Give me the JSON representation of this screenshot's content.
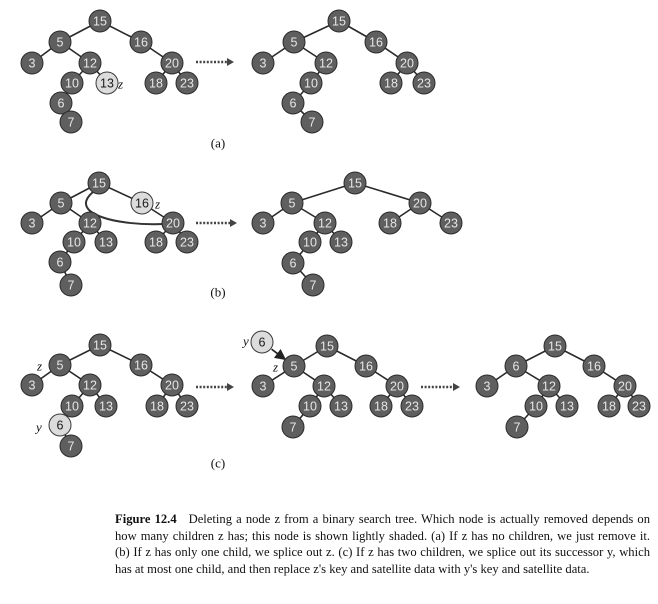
{
  "caption": {
    "title": "Figure 12.4",
    "text": "Deleting a node z from a binary search tree. Which node is actually removed depends on how many children z has; this node is shown lightly shaded. (a) If z has no children, we just remove it. (b) If z has only one child, we splice out z. (c) If z has two children, we splice out its successor y, which has at most one child, and then replace z's key and satellite data with y's key and satellite data."
  },
  "colors": {
    "dark_node": "#5f5f5f",
    "light_node": "#dcdcdc",
    "edge": "#2a2a2a"
  },
  "panels": [
    {
      "label": "(a)",
      "trees": [
        {
          "nodes": [
            {
              "id": "n15",
              "key": "15",
              "shade": "dark"
            },
            {
              "id": "n5",
              "key": "5",
              "shade": "dark"
            },
            {
              "id": "n16",
              "key": "16",
              "shade": "dark"
            },
            {
              "id": "n3",
              "key": "3",
              "shade": "dark"
            },
            {
              "id": "n12",
              "key": "12",
              "shade": "dark"
            },
            {
              "id": "n20",
              "key": "20",
              "shade": "dark"
            },
            {
              "id": "n10",
              "key": "10",
              "shade": "dark"
            },
            {
              "id": "n13",
              "key": "13",
              "shade": "light",
              "marker": "z"
            },
            {
              "id": "n18",
              "key": "18",
              "shade": "dark"
            },
            {
              "id": "n23",
              "key": "23",
              "shade": "dark"
            },
            {
              "id": "n6",
              "key": "6",
              "shade": "dark"
            },
            {
              "id": "n7",
              "key": "7",
              "shade": "dark"
            }
          ],
          "edges": [
            [
              "n15",
              "n5"
            ],
            [
              "n15",
              "n16"
            ],
            [
              "n5",
              "n3"
            ],
            [
              "n5",
              "n12"
            ],
            [
              "n16",
              "n20"
            ],
            [
              "n12",
              "n10"
            ],
            [
              "n12",
              "n13"
            ],
            [
              "n20",
              "n18"
            ],
            [
              "n20",
              "n23"
            ],
            [
              "n10",
              "n6"
            ],
            [
              "n6",
              "n7"
            ]
          ]
        },
        {
          "nodes": [
            {
              "id": "n15",
              "key": "15",
              "shade": "dark"
            },
            {
              "id": "n5",
              "key": "5",
              "shade": "dark"
            },
            {
              "id": "n16",
              "key": "16",
              "shade": "dark"
            },
            {
              "id": "n3",
              "key": "3",
              "shade": "dark"
            },
            {
              "id": "n12",
              "key": "12",
              "shade": "dark"
            },
            {
              "id": "n20",
              "key": "20",
              "shade": "dark"
            },
            {
              "id": "n10",
              "key": "10",
              "shade": "dark"
            },
            {
              "id": "n18",
              "key": "18",
              "shade": "dark"
            },
            {
              "id": "n23",
              "key": "23",
              "shade": "dark"
            },
            {
              "id": "n6",
              "key": "6",
              "shade": "dark"
            },
            {
              "id": "n7",
              "key": "7",
              "shade": "dark"
            }
          ],
          "edges": [
            [
              "n15",
              "n5"
            ],
            [
              "n15",
              "n16"
            ],
            [
              "n5",
              "n3"
            ],
            [
              "n5",
              "n12"
            ],
            [
              "n16",
              "n20"
            ],
            [
              "n12",
              "n10"
            ],
            [
              "n20",
              "n18"
            ],
            [
              "n20",
              "n23"
            ],
            [
              "n10",
              "n6"
            ],
            [
              "n6",
              "n7"
            ]
          ]
        }
      ]
    },
    {
      "label": "(b)",
      "trees": [
        {
          "nodes": [
            {
              "id": "n15",
              "key": "15",
              "shade": "dark"
            },
            {
              "id": "n5",
              "key": "5",
              "shade": "dark"
            },
            {
              "id": "n16",
              "key": "16",
              "shade": "light",
              "marker": "z"
            },
            {
              "id": "n3",
              "key": "3",
              "shade": "dark"
            },
            {
              "id": "n12",
              "key": "12",
              "shade": "dark"
            },
            {
              "id": "n20",
              "key": "20",
              "shade": "dark"
            },
            {
              "id": "n10",
              "key": "10",
              "shade": "dark"
            },
            {
              "id": "n13",
              "key": "13",
              "shade": "dark"
            },
            {
              "id": "n18",
              "key": "18",
              "shade": "dark"
            },
            {
              "id": "n23",
              "key": "23",
              "shade": "dark"
            },
            {
              "id": "n6",
              "key": "6",
              "shade": "dark"
            },
            {
              "id": "n7",
              "key": "7",
              "shade": "dark"
            }
          ],
          "edges": [
            [
              "n15",
              "n5"
            ],
            [
              "n15",
              "n16"
            ],
            [
              "n5",
              "n3"
            ],
            [
              "n5",
              "n12"
            ],
            [
              "n16",
              "n20"
            ],
            [
              "n12",
              "n10"
            ],
            [
              "n12",
              "n13"
            ],
            [
              "n20",
              "n18"
            ],
            [
              "n20",
              "n23"
            ],
            [
              "n10",
              "n6"
            ],
            [
              "n6",
              "n7"
            ]
          ],
          "splice_curve": [
            "n15",
            "n20"
          ]
        },
        {
          "nodes": [
            {
              "id": "n15",
              "key": "15",
              "shade": "dark"
            },
            {
              "id": "n5",
              "key": "5",
              "shade": "dark"
            },
            {
              "id": "n20",
              "key": "20",
              "shade": "dark"
            },
            {
              "id": "n3",
              "key": "3",
              "shade": "dark"
            },
            {
              "id": "n12",
              "key": "12",
              "shade": "dark"
            },
            {
              "id": "n18",
              "key": "18",
              "shade": "dark"
            },
            {
              "id": "n23",
              "key": "23",
              "shade": "dark"
            },
            {
              "id": "n10",
              "key": "10",
              "shade": "dark"
            },
            {
              "id": "n13",
              "key": "13",
              "shade": "dark"
            },
            {
              "id": "n6",
              "key": "6",
              "shade": "dark"
            },
            {
              "id": "n7",
              "key": "7",
              "shade": "dark"
            }
          ],
          "edges": [
            [
              "n15",
              "n5"
            ],
            [
              "n15",
              "n20"
            ],
            [
              "n5",
              "n3"
            ],
            [
              "n5",
              "n12"
            ],
            [
              "n20",
              "n18"
            ],
            [
              "n20",
              "n23"
            ],
            [
              "n12",
              "n10"
            ],
            [
              "n12",
              "n13"
            ],
            [
              "n10",
              "n6"
            ],
            [
              "n6",
              "n7"
            ]
          ]
        }
      ]
    },
    {
      "label": "(c)",
      "trees": [
        {
          "nodes": [
            {
              "id": "n15",
              "key": "15",
              "shade": "dark"
            },
            {
              "id": "n5",
              "key": "5",
              "shade": "dark",
              "marker": "z"
            },
            {
              "id": "n16",
              "key": "16",
              "shade": "dark"
            },
            {
              "id": "n3",
              "key": "3",
              "shade": "dark"
            },
            {
              "id": "n12",
              "key": "12",
              "shade": "dark"
            },
            {
              "id": "n20",
              "key": "20",
              "shade": "dark"
            },
            {
              "id": "n10",
              "key": "10",
              "shade": "dark"
            },
            {
              "id": "n13",
              "key": "13",
              "shade": "dark"
            },
            {
              "id": "n18",
              "key": "18",
              "shade": "dark"
            },
            {
              "id": "n23",
              "key": "23",
              "shade": "dark"
            },
            {
              "id": "n6",
              "key": "6",
              "shade": "light",
              "marker": "y"
            },
            {
              "id": "n7",
              "key": "7",
              "shade": "dark"
            }
          ],
          "edges": [
            [
              "n15",
              "n5"
            ],
            [
              "n15",
              "n16"
            ],
            [
              "n5",
              "n3"
            ],
            [
              "n5",
              "n12"
            ],
            [
              "n16",
              "n20"
            ],
            [
              "n12",
              "n10"
            ],
            [
              "n12",
              "n13"
            ],
            [
              "n20",
              "n18"
            ],
            [
              "n20",
              "n23"
            ],
            [
              "n10",
              "n6"
            ],
            [
              "n6",
              "n7"
            ]
          ]
        },
        {
          "nodes": [
            {
              "id": "n6",
              "key": "6",
              "shade": "light",
              "marker": "y"
            },
            {
              "id": "n15",
              "key": "15",
              "shade": "dark"
            },
            {
              "id": "n5",
              "key": "5",
              "shade": "dark",
              "marker": "z"
            },
            {
              "id": "n16",
              "key": "16",
              "shade": "dark"
            },
            {
              "id": "n3",
              "key": "3",
              "shade": "dark"
            },
            {
              "id": "n12",
              "key": "12",
              "shade": "dark"
            },
            {
              "id": "n20",
              "key": "20",
              "shade": "dark"
            },
            {
              "id": "n10",
              "key": "10",
              "shade": "dark"
            },
            {
              "id": "n13",
              "key": "13",
              "shade": "dark"
            },
            {
              "id": "n18",
              "key": "18",
              "shade": "dark"
            },
            {
              "id": "n23",
              "key": "23",
              "shade": "dark"
            },
            {
              "id": "n7",
              "key": "7",
              "shade": "dark"
            }
          ],
          "edges": [
            [
              "n15",
              "n5"
            ],
            [
              "n15",
              "n16"
            ],
            [
              "n5",
              "n3"
            ],
            [
              "n5",
              "n12"
            ],
            [
              "n16",
              "n20"
            ],
            [
              "n12",
              "n10"
            ],
            [
              "n12",
              "n13"
            ],
            [
              "n20",
              "n18"
            ],
            [
              "n20",
              "n23"
            ],
            [
              "n10",
              "n7"
            ]
          ],
          "replace_arrow": [
            "n6",
            "n5"
          ]
        },
        {
          "nodes": [
            {
              "id": "n15",
              "key": "15",
              "shade": "dark"
            },
            {
              "id": "n6",
              "key": "6",
              "shade": "dark"
            },
            {
              "id": "n16",
              "key": "16",
              "shade": "dark"
            },
            {
              "id": "n3",
              "key": "3",
              "shade": "dark"
            },
            {
              "id": "n12",
              "key": "12",
              "shade": "dark"
            },
            {
              "id": "n20",
              "key": "20",
              "shade": "dark"
            },
            {
              "id": "n10",
              "key": "10",
              "shade": "dark"
            },
            {
              "id": "n13",
              "key": "13",
              "shade": "dark"
            },
            {
              "id": "n18",
              "key": "18",
              "shade": "dark"
            },
            {
              "id": "n23",
              "key": "23",
              "shade": "dark"
            },
            {
              "id": "n7",
              "key": "7",
              "shade": "dark"
            }
          ],
          "edges": [
            [
              "n15",
              "n6"
            ],
            [
              "n15",
              "n16"
            ],
            [
              "n6",
              "n3"
            ],
            [
              "n6",
              "n12"
            ],
            [
              "n16",
              "n20"
            ],
            [
              "n12",
              "n10"
            ],
            [
              "n12",
              "n13"
            ],
            [
              "n20",
              "n18"
            ],
            [
              "n20",
              "n23"
            ],
            [
              "n10",
              "n7"
            ]
          ]
        }
      ]
    }
  ]
}
